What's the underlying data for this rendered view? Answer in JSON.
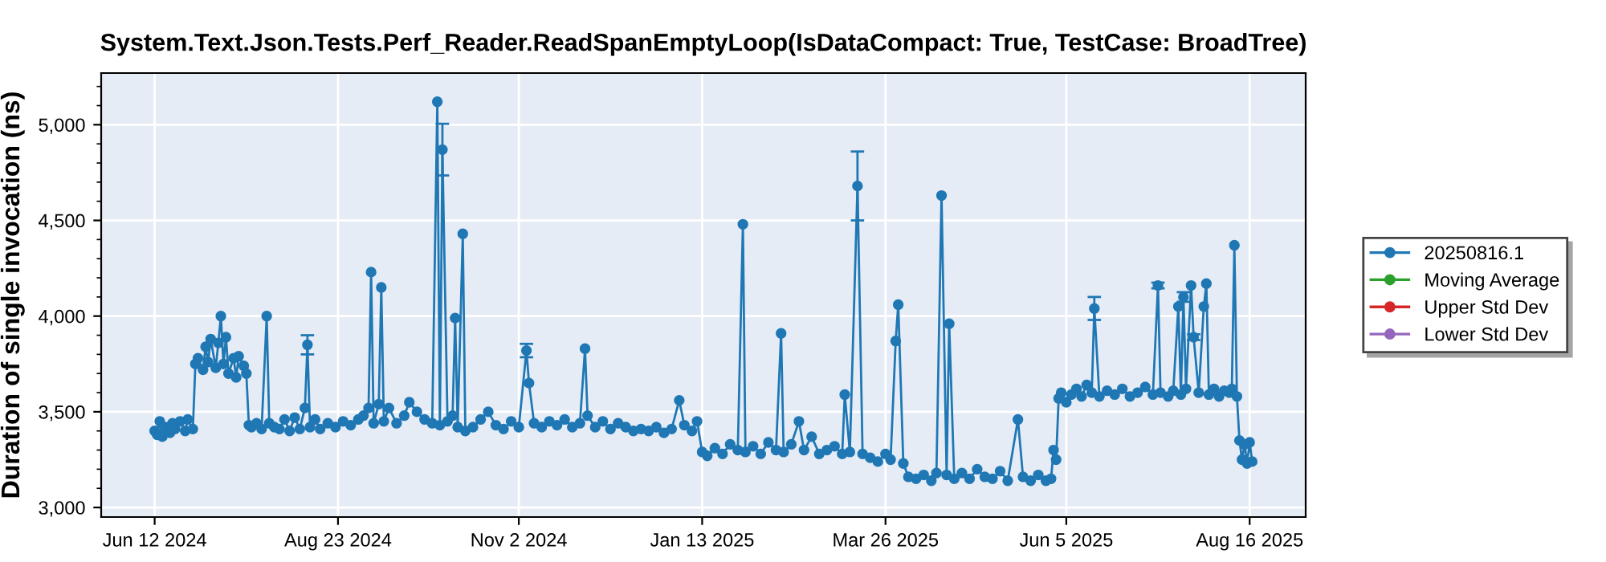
{
  "chart_data": {
    "type": "line",
    "title": "System.Text.Json.Tests.Perf_Reader.ReadSpanEmptyLoop(IsDataCompact: True, TestCase: BroadTree)",
    "ylabel": "Duration of single invocation (ns)",
    "xlim": [
      "2024-05-22",
      "2025-09-07"
    ],
    "xticks": [
      {
        "value": "2024-06-12",
        "label": "Jun 12 2024"
      },
      {
        "value": "2024-08-23",
        "label": "Aug 23 2024"
      },
      {
        "value": "2024-11-02",
        "label": "Nov 2 2024"
      },
      {
        "value": "2025-01-13",
        "label": "Jan 13 2025"
      },
      {
        "value": "2025-03-26",
        "label": "Mar 26 2025"
      },
      {
        "value": "2025-06-05",
        "label": "Jun 5 2025"
      },
      {
        "value": "2025-08-16",
        "label": "Aug 16 2025"
      }
    ],
    "ylim": [
      2950,
      5270
    ],
    "yticks": [
      {
        "value": 3000,
        "label": "3,000"
      },
      {
        "value": 3500,
        "label": "3,500"
      },
      {
        "value": 4000,
        "label": "4,000"
      },
      {
        "value": 4500,
        "label": "4,500"
      },
      {
        "value": 5000,
        "label": "5,000"
      }
    ],
    "grid": true,
    "legend": "right",
    "marker": "circle",
    "line_style": "solid",
    "series": [
      {
        "name": "20250816.1",
        "color": "#1f77b4",
        "x": [
          "2024-06-12",
          "2024-06-13",
          "2024-06-14",
          "2024-06-15",
          "2024-06-16",
          "2024-06-18",
          "2024-06-19",
          "2024-06-20",
          "2024-06-22",
          "2024-06-24",
          "2024-06-25",
          "2024-06-27",
          "2024-06-28",
          "2024-06-29",
          "2024-07-01",
          "2024-07-02",
          "2024-07-03",
          "2024-07-04",
          "2024-07-06",
          "2024-07-07",
          "2024-07-08",
          "2024-07-09",
          "2024-07-10",
          "2024-07-11",
          "2024-07-13",
          "2024-07-14",
          "2024-07-15",
          "2024-07-17",
          "2024-07-18",
          "2024-07-19",
          "2024-07-20",
          "2024-07-22",
          "2024-07-24",
          "2024-07-26",
          "2024-07-27",
          "2024-07-29",
          "2024-07-31",
          "2024-08-02",
          "2024-08-04",
          "2024-08-06",
          "2024-08-08",
          "2024-08-10",
          "2024-08-11",
          "2024-08-12",
          "2024-08-14",
          "2024-08-16",
          "2024-08-19",
          "2024-08-22",
          "2024-08-25",
          "2024-08-28",
          "2024-08-31",
          "2024-09-02",
          "2024-09-04",
          "2024-09-05",
          "2024-09-06",
          "2024-09-08",
          "2024-09-09",
          "2024-09-10",
          "2024-09-12",
          "2024-09-15",
          "2024-09-18",
          "2024-09-20",
          "2024-09-23",
          "2024-09-26",
          "2024-09-29",
          "2024-10-01",
          "2024-10-02",
          "2024-10-03",
          "2024-10-05",
          "2024-10-07",
          "2024-10-08",
          "2024-10-09",
          "2024-10-11",
          "2024-10-12",
          "2024-10-15",
          "2024-10-18",
          "2024-10-21",
          "2024-10-24",
          "2024-10-27",
          "2024-10-30",
          "2024-11-02",
          "2024-11-05",
          "2024-11-06",
          "2024-11-08",
          "2024-11-11",
          "2024-11-14",
          "2024-11-17",
          "2024-11-20",
          "2024-11-23",
          "2024-11-26",
          "2024-11-28",
          "2024-11-29",
          "2024-12-02",
          "2024-12-05",
          "2024-12-08",
          "2024-12-11",
          "2024-12-14",
          "2024-12-17",
          "2024-12-20",
          "2024-12-23",
          "2024-12-26",
          "2024-12-29",
          "2025-01-01",
          "2025-01-04",
          "2025-01-06",
          "2025-01-09",
          "2025-01-11",
          "2025-01-13",
          "2025-01-15",
          "2025-01-18",
          "2025-01-21",
          "2025-01-24",
          "2025-01-27",
          "2025-01-29",
          "2025-01-30",
          "2025-02-02",
          "2025-02-05",
          "2025-02-08",
          "2025-02-11",
          "2025-02-13",
          "2025-02-14",
          "2025-02-17",
          "2025-02-20",
          "2025-02-22",
          "2025-02-25",
          "2025-02-28",
          "2025-03-03",
          "2025-03-06",
          "2025-03-09",
          "2025-03-10",
          "2025-03-12",
          "2025-03-15",
          "2025-03-17",
          "2025-03-20",
          "2025-03-23",
          "2025-03-26",
          "2025-03-28",
          "2025-03-30",
          "2025-03-31",
          "2025-04-02",
          "2025-04-04",
          "2025-04-07",
          "2025-04-10",
          "2025-04-13",
          "2025-04-15",
          "2025-04-17",
          "2025-04-19",
          "2025-04-20",
          "2025-04-22",
          "2025-04-25",
          "2025-04-28",
          "2025-05-01",
          "2025-05-04",
          "2025-05-07",
          "2025-05-10",
          "2025-05-13",
          "2025-05-17",
          "2025-05-19",
          "2025-05-22",
          "2025-05-25",
          "2025-05-28",
          "2025-05-30",
          "2025-05-31",
          "2025-06-01",
          "2025-06-02",
          "2025-06-03",
          "2025-06-05",
          "2025-06-07",
          "2025-06-09",
          "2025-06-11",
          "2025-06-13",
          "2025-06-15",
          "2025-06-16",
          "2025-06-18",
          "2025-06-21",
          "2025-06-24",
          "2025-06-27",
          "2025-06-30",
          "2025-07-03",
          "2025-07-06",
          "2025-07-09",
          "2025-07-11",
          "2025-07-12",
          "2025-07-15",
          "2025-07-17",
          "2025-07-19",
          "2025-07-20",
          "2025-07-21",
          "2025-07-22",
          "2025-07-24",
          "2025-07-25",
          "2025-07-27",
          "2025-07-29",
          "2025-07-30",
          "2025-07-31",
          "2025-08-02",
          "2025-08-04",
          "2025-08-06",
          "2025-08-08",
          "2025-08-09",
          "2025-08-10",
          "2025-08-11",
          "2025-08-12",
          "2025-08-13",
          "2025-08-14",
          "2025-08-15",
          "2025-08-16",
          "2025-08-17"
        ],
        "values": [
          3400,
          3380,
          3450,
          3370,
          3420,
          3390,
          3440,
          3410,
          3450,
          3400,
          3460,
          3410,
          3750,
          3780,
          3720,
          3840,
          3760,
          3880,
          3730,
          3860,
          4000,
          3750,
          3890,
          3700,
          3780,
          3680,
          3790,
          3740,
          3700,
          3430,
          3420,
          3440,
          3410,
          4000,
          3440,
          3420,
          3410,
          3460,
          3400,
          3470,
          3410,
          3520,
          3850,
          3420,
          3460,
          3410,
          3440,
          3420,
          3450,
          3430,
          3460,
          3480,
          3520,
          4230,
          3440,
          3540,
          4150,
          3450,
          3520,
          3440,
          3480,
          3550,
          3500,
          3460,
          3440,
          5120,
          3430,
          4870,
          3450,
          3480,
          3990,
          3420,
          4430,
          3400,
          3420,
          3460,
          3500,
          3430,
          3410,
          3450,
          3420,
          3820,
          3650,
          3440,
          3420,
          3450,
          3430,
          3460,
          3420,
          3440,
          3830,
          3480,
          3420,
          3450,
          3410,
          3440,
          3420,
          3400,
          3410,
          3400,
          3420,
          3390,
          3410,
          3560,
          3430,
          3400,
          3450,
          3290,
          3270,
          3310,
          3280,
          3330,
          3300,
          4480,
          3290,
          3320,
          3280,
          3340,
          3300,
          3910,
          3290,
          3330,
          3450,
          3300,
          3370,
          3280,
          3300,
          3320,
          3280,
          3590,
          3290,
          4680,
          3280,
          3260,
          3240,
          3280,
          3250,
          3870,
          4060,
          3230,
          3160,
          3150,
          3170,
          3140,
          3180,
          4630,
          3170,
          3960,
          3150,
          3180,
          3150,
          3200,
          3160,
          3150,
          3190,
          3140,
          3460,
          3160,
          3140,
          3170,
          3140,
          3150,
          3300,
          3250,
          3570,
          3600,
          3550,
          3590,
          3620,
          3580,
          3640,
          3600,
          4040,
          3580,
          3610,
          3590,
          3620,
          3580,
          3600,
          3630,
          3590,
          4160,
          3600,
          3580,
          3610,
          4050,
          3590,
          4100,
          3620,
          4160,
          3890,
          3600,
          4050,
          4170,
          3590,
          3620,
          3580,
          3610,
          3600,
          3620,
          4370,
          3580,
          3350,
          3250,
          3330,
          3230,
          3340,
          3240
        ],
        "errors": [
          null,
          null,
          null,
          null,
          null,
          null,
          null,
          null,
          null,
          null,
          null,
          null,
          null,
          null,
          null,
          null,
          null,
          null,
          null,
          null,
          null,
          null,
          null,
          null,
          null,
          null,
          null,
          null,
          null,
          null,
          null,
          null,
          null,
          null,
          null,
          null,
          null,
          null,
          null,
          null,
          null,
          null,
          50,
          null,
          null,
          null,
          null,
          null,
          null,
          null,
          null,
          null,
          null,
          null,
          null,
          null,
          null,
          null,
          null,
          null,
          null,
          null,
          null,
          null,
          null,
          null,
          null,
          135,
          null,
          null,
          null,
          null,
          null,
          null,
          null,
          null,
          null,
          null,
          null,
          null,
          null,
          35,
          null,
          null,
          null,
          null,
          null,
          null,
          null,
          null,
          null,
          null,
          null,
          null,
          null,
          null,
          null,
          null,
          null,
          null,
          null,
          null,
          null,
          null,
          null,
          null,
          null,
          null,
          null,
          null,
          null,
          null,
          null,
          null,
          null,
          null,
          null,
          null,
          null,
          null,
          null,
          null,
          null,
          null,
          null,
          null,
          null,
          null,
          null,
          null,
          null,
          180,
          null,
          null,
          null,
          null,
          null,
          null,
          null,
          null,
          null,
          null,
          null,
          null,
          null,
          null,
          null,
          null,
          null,
          null,
          null,
          null,
          null,
          null,
          null,
          null,
          null,
          null,
          null,
          null,
          null,
          null,
          null,
          null,
          null,
          null,
          null,
          null,
          null,
          null,
          null,
          null,
          60,
          null,
          null,
          null,
          null,
          null,
          null,
          null,
          null,
          15,
          null,
          null,
          null,
          null,
          null,
          25,
          null,
          null,
          15,
          null,
          null,
          null,
          null,
          null,
          null,
          null,
          null,
          null,
          null,
          null,
          null,
          null,
          null,
          null,
          null,
          null
        ]
      },
      {
        "name": "Moving Average",
        "color": "#2ca02c"
      },
      {
        "name": "Upper Std Dev",
        "color": "#d62728"
      },
      {
        "name": "Lower Std Dev",
        "color": "#9467bd"
      }
    ]
  }
}
